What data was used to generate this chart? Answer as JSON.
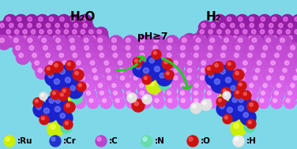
{
  "background_color": "#7fd8e8",
  "surface_color": "#bb44cc",
  "surface_color2": "#cc55dd",
  "title": "",
  "legend": [
    {
      "label": ":Ru",
      "color": "#ccee00"
    },
    {
      "label": ":Cr",
      "color": "#2233cc"
    },
    {
      "label": ":C",
      "color": "#bb44cc"
    },
    {
      "label": ":N",
      "color": "#66ddaa"
    },
    {
      "label": ":O",
      "color": "#cc1111"
    },
    {
      "label": ":H",
      "color": "#e8e8e8"
    }
  ],
  "h2o_label": "H₂O",
  "h2_label": "H₂",
  "ph_label": "pH≥7",
  "arrow_color": "#22cc22"
}
